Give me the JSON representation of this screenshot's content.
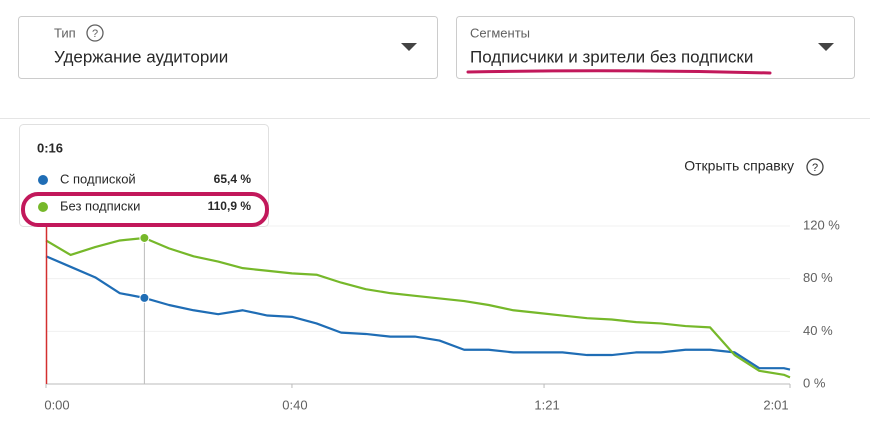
{
  "filters": [
    {
      "label": "Тип",
      "value": "Удержание аудитории"
    },
    {
      "label": "Сегменты",
      "value": "Подписчики и зрители без подписки"
    }
  ],
  "help_link": "Открыть справку",
  "chart_data": {
    "type": "line",
    "x": [
      0,
      4,
      8,
      12,
      16,
      20,
      24,
      28,
      32,
      36,
      40,
      44,
      48,
      52,
      56,
      60,
      64,
      68,
      72,
      76,
      80,
      84,
      88,
      92,
      96,
      100,
      104,
      108,
      112,
      116,
      120,
      121
    ],
    "series": [
      {
        "name": "С подпиской",
        "color": "#1f6db5",
        "values": [
          97,
          89,
          81,
          69,
          65.4,
          60,
          56,
          53,
          56,
          52,
          51,
          46,
          39,
          38,
          36,
          36,
          33,
          26,
          26,
          24,
          24,
          24,
          22,
          22,
          24,
          24,
          26,
          26,
          24,
          12,
          12,
          11
        ]
      },
      {
        "name": "Без подписки",
        "color": "#76b82a",
        "values": [
          109,
          98,
          104,
          109,
          110.9,
          103,
          97,
          93,
          88,
          86,
          84,
          83,
          77,
          72,
          69,
          67,
          65,
          63,
          60,
          56,
          54,
          52,
          50,
          49,
          47,
          46,
          44,
          43,
          22,
          10,
          7,
          5
        ]
      }
    ],
    "xlim": [
      0,
      121
    ],
    "xticks": [
      {
        "value": 0,
        "label": "0:00"
      },
      {
        "value": 40,
        "label": "0:40"
      },
      {
        "value": 81,
        "label": "1:21"
      },
      {
        "value": 121,
        "label": "2:01"
      }
    ],
    "ylim": [
      0,
      120
    ],
    "yticks": [
      {
        "value": 0,
        "label": "0 %"
      },
      {
        "value": 40,
        "label": "40 %"
      },
      {
        "value": 80,
        "label": "80 %"
      },
      {
        "value": 120,
        "label": "120 %"
      }
    ],
    "grid": true,
    "tooltip": {
      "time": "0:16",
      "x": 16,
      "value_labels": [
        "65,4 %",
        "110,9 %"
      ]
    }
  }
}
